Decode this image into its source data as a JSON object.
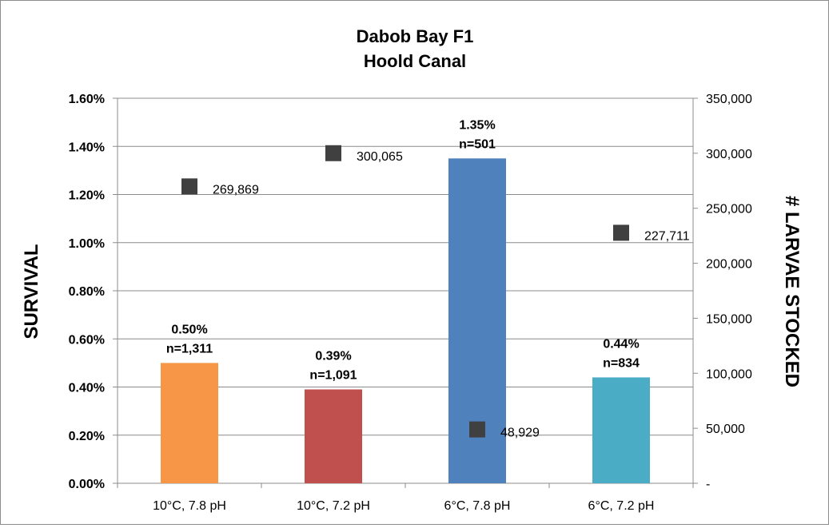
{
  "chart_data": {
    "type": "bar",
    "title_lines": [
      "Dabob Bay F1",
      "Hoold Canal"
    ],
    "categories": [
      "10°C, 7.8 pH",
      "10°C, 7.2 pH",
      "6°C, 7.8 pH",
      "6°C, 7.2 pH"
    ],
    "ylabel": "SURVIVAL",
    "y2label": "# LARVAE STOCKED",
    "ylim": [
      0,
      1.6
    ],
    "y2lim": [
      0,
      350000
    ],
    "yticks": [
      "0.00%",
      "0.20%",
      "0.40%",
      "0.60%",
      "0.80%",
      "1.00%",
      "1.20%",
      "1.40%",
      "1.60%"
    ],
    "y2ticks": [
      "-",
      "50,000",
      "100,000",
      "150,000",
      "200,000",
      "250,000",
      "300,000",
      "350,000"
    ],
    "grid": true,
    "series": [
      {
        "type": "bar",
        "axis": "left",
        "values": [
          0.5,
          0.39,
          1.35,
          0.44
        ],
        "labels": [
          "0.50%",
          "0.39%",
          "1.35%",
          "0.44%"
        ],
        "counts": [
          "n=1,311",
          "n=1,091",
          "n=501",
          "n=834"
        ],
        "colors": [
          "#f79646",
          "#c0504d",
          "#4f81bd",
          "#4bacc6"
        ]
      },
      {
        "type": "scatter",
        "axis": "right",
        "values": [
          269869,
          300065,
          48929,
          227711
        ],
        "labels": [
          "269,869",
          "300,065",
          "48,929",
          "227,711"
        ],
        "color": "#404040"
      }
    ]
  }
}
